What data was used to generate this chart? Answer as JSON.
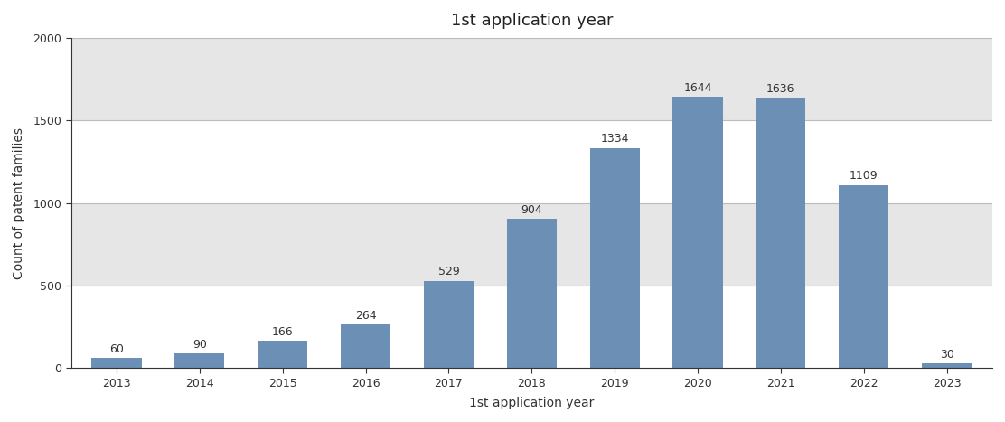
{
  "title": "1st application year",
  "xlabel": "1st application year",
  "ylabel": "Count of patent families",
  "categories": [
    "2013",
    "2014",
    "2015",
    "2016",
    "2017",
    "2018",
    "2019",
    "2020",
    "2021",
    "2022",
    "2023"
  ],
  "values": [
    60,
    90,
    166,
    264,
    529,
    904,
    1334,
    1644,
    1636,
    1109,
    30
  ],
  "bar_color": "#6b8fb5",
  "background_color": "#ffffff",
  "plot_bg_color": "#ffffff",
  "ylim": [
    0,
    2000
  ],
  "yticks": [
    0,
    500,
    1000,
    1500,
    2000
  ],
  "title_fontsize": 13,
  "label_fontsize": 10,
  "tick_fontsize": 9,
  "annotation_fontsize": 9,
  "annotation_color": "#333333",
  "stripe_colors": [
    "#ffffff",
    "#e6e6e6"
  ],
  "stripe_boundaries": [
    0,
    500,
    1000,
    1500,
    2000
  ],
  "spine_color": "#333333",
  "tick_color": "#333333"
}
